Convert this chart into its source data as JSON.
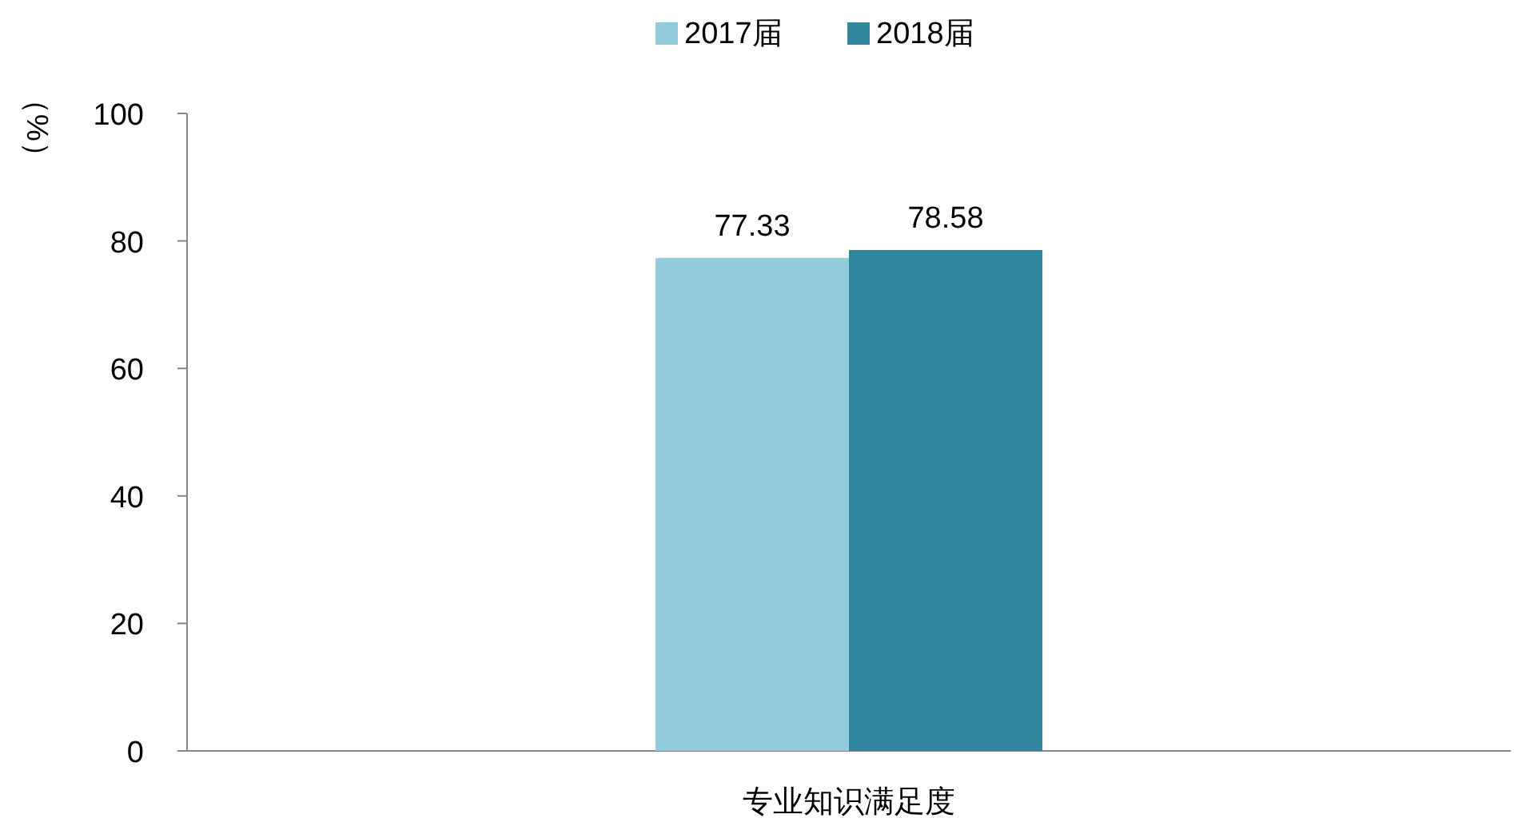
{
  "chart_data": {
    "type": "bar",
    "categories": [
      "专业知识满足度"
    ],
    "series": [
      {
        "name": "2017届",
        "color": "#93cddd",
        "values": [
          77.33
        ]
      },
      {
        "name": "2018届",
        "color": "#31859c",
        "values": [
          78.58
        ]
      }
    ],
    "ylabel": "（%）",
    "ylim": [
      0,
      100
    ],
    "yticks": [
      0,
      20,
      40,
      60,
      80,
      100
    ],
    "legend": "top",
    "data_labels": true,
    "grid": false
  }
}
